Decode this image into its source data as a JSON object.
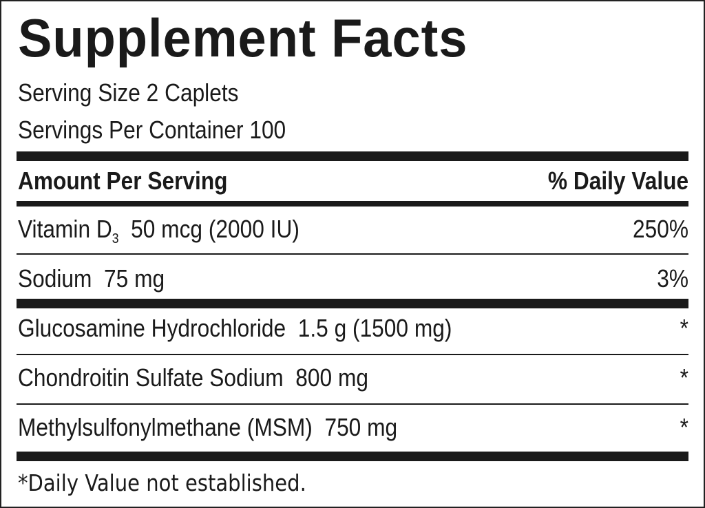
{
  "title": "Supplement Facts",
  "serving_size": "Serving Size 2 Caplets",
  "servings_per_container": "Servings Per Container 100",
  "header": {
    "left": "Amount Per Serving",
    "right": "% Daily Value"
  },
  "rows": [
    {
      "name": "Vitamin D",
      "sub": "3",
      "amount": "50 mcg (2000 IU)",
      "dv": "250%"
    },
    {
      "name": "Sodium",
      "amount": "75 mg",
      "dv": "3%"
    },
    {
      "name": "Glucosamine Hydrochloride",
      "amount": "1.5 g (1500 mg)",
      "dv": "*"
    },
    {
      "name": "Chondroitin Sulfate Sodium",
      "amount": "800 mg",
      "dv": "*"
    },
    {
      "name": "Methylsulfonylmethane (MSM)",
      "amount": "750 mg",
      "dv": "*"
    }
  ],
  "footnote": "*Daily Value not established."
}
